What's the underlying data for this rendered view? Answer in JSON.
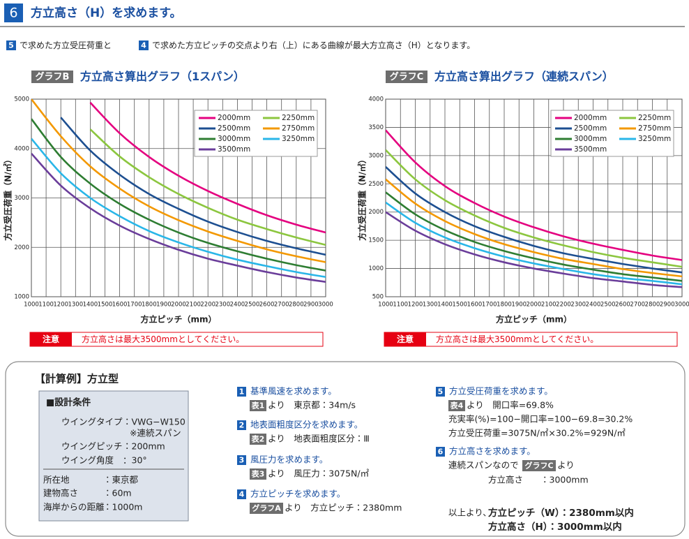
{
  "header": {
    "number": "6",
    "title": "方立高さ（H）を求めます。"
  },
  "intro": {
    "ref1": "5",
    "text1": "で求めた方立受圧荷重と",
    "ref2": "4",
    "text2": "で求めた方立ピッチの交点より右（上）にある曲線が最大方立高さ（H）となります。"
  },
  "chart_data": [
    {
      "type": "line",
      "badge": "グラフB",
      "title": "方立高さ算出グラフ（1スパン）",
      "x_label": "方立ピッチ（mm）",
      "y_label": "方立受圧荷重（N/㎡）",
      "x": [
        1000,
        1200,
        1400,
        1600,
        1800,
        2000,
        2200,
        2400,
        2600,
        2800,
        3000
      ],
      "xlim": [
        1000,
        3000
      ],
      "xticks": [
        1000,
        1100,
        1200,
        1300,
        1400,
        1500,
        1600,
        1700,
        1800,
        1900,
        2000,
        2100,
        2200,
        2300,
        2400,
        2500,
        2600,
        2700,
        2800,
        2900,
        3000
      ],
      "ylim": [
        1000,
        5000
      ],
      "yticks": [
        1000,
        2000,
        3000,
        4000,
        5000
      ],
      "grid": true,
      "legend": "upper right",
      "series": [
        {
          "name": "2000mm",
          "color": "#e4007f",
          "values": [
            null,
            null,
            4930,
            4310,
            3830,
            3450,
            3140,
            2880,
            2650,
            2460,
            2300
          ]
        },
        {
          "name": "2250mm",
          "color": "#8cc63f",
          "values": [
            null,
            null,
            4390,
            3840,
            3420,
            3080,
            2800,
            2560,
            2370,
            2200,
            2050
          ]
        },
        {
          "name": "2500mm",
          "color": "#1d4f91",
          "values": [
            null,
            4630,
            3960,
            3470,
            3080,
            2780,
            2520,
            2310,
            2130,
            1980,
            1850
          ]
        },
        {
          "name": "2750mm",
          "color": "#f39800",
          "values": [
            5000,
            4250,
            3640,
            3190,
            2830,
            2550,
            2320,
            2130,
            1960,
            1820,
            1700
          ]
        },
        {
          "name": "3000mm",
          "color": "#2e7d32",
          "values": [
            4600,
            3830,
            3290,
            2880,
            2560,
            2300,
            2090,
            1920,
            1770,
            1640,
            1530
          ]
        },
        {
          "name": "3250mm",
          "color": "#29b6e8",
          "values": [
            4200,
            3500,
            3000,
            2630,
            2330,
            2100,
            1910,
            1750,
            1620,
            1500,
            1400
          ]
        },
        {
          "name": "3500mm",
          "color": "#6a3d9a",
          "values": [
            3900,
            3250,
            2790,
            2440,
            2170,
            1950,
            1770,
            1630,
            1500,
            1390,
            1300
          ]
        }
      ],
      "note": {
        "label": "注意",
        "text": "方立高さは最大3500mmとしてください。"
      }
    },
    {
      "type": "line",
      "badge": "グラフC",
      "title": "方立高さ算出グラフ（連続スパン）",
      "x_label": "方立ピッチ（mm）",
      "y_label": "方立受圧荷重（N/㎡）",
      "x": [
        1000,
        1200,
        1400,
        1600,
        1800,
        2000,
        2200,
        2400,
        2600,
        2800,
        3000
      ],
      "xlim": [
        1000,
        3000
      ],
      "xticks": [
        1000,
        1100,
        1200,
        1300,
        1400,
        1500,
        1600,
        1700,
        1800,
        1900,
        2000,
        2100,
        2200,
        2300,
        2400,
        2500,
        2600,
        2700,
        2800,
        2900,
        3000
      ],
      "ylim": [
        500,
        4000
      ],
      "yticks": [
        500,
        1000,
        1500,
        2000,
        2500,
        3000,
        3500,
        4000
      ],
      "grid": true,
      "legend": "upper right",
      "series": [
        {
          "name": "2000mm",
          "color": "#e4007f",
          "values": [
            3450,
            2880,
            2460,
            2160,
            1920,
            1730,
            1570,
            1440,
            1330,
            1230,
            1150
          ]
        },
        {
          "name": "2250mm",
          "color": "#8cc63f",
          "values": [
            3100,
            2580,
            2210,
            1940,
            1720,
            1550,
            1410,
            1290,
            1190,
            1110,
            1030
          ]
        },
        {
          "name": "2500mm",
          "color": "#1d4f91",
          "values": [
            2800,
            2330,
            2000,
            1750,
            1560,
            1400,
            1270,
            1170,
            1080,
            1000,
            930
          ]
        },
        {
          "name": "2750mm",
          "color": "#f39800",
          "values": [
            2580,
            2150,
            1840,
            1610,
            1430,
            1290,
            1170,
            1080,
            990,
            920,
            860
          ]
        },
        {
          "name": "3000mm",
          "color": "#2e7d32",
          "values": [
            2350,
            1960,
            1680,
            1470,
            1310,
            1180,
            1070,
            980,
            900,
            840,
            780
          ]
        },
        {
          "name": "3250mm",
          "color": "#29b6e8",
          "values": [
            2170,
            1810,
            1550,
            1360,
            1210,
            1090,
            990,
            900,
            830,
            780,
            720
          ]
        },
        {
          "name": "3500mm",
          "color": "#6a3d9a",
          "values": [
            2000,
            1670,
            1430,
            1250,
            1110,
            1000,
            910,
            830,
            770,
            710,
            670
          ]
        }
      ],
      "note": {
        "label": "注意",
        "text": "方立高さは最大3500mmとしてください。"
      }
    }
  ],
  "example": {
    "title": "【計算例】方立型",
    "conditions": {
      "heading": "■設計条件",
      "rows": [
        {
          "label": "ウイングタイプ",
          "value": "：VWG−W150",
          "note": "※連続スパン"
        },
        {
          "label": "ウイングピッチ",
          "value": "：200mm"
        },
        {
          "label": "ウイング角度",
          "value": "：30°"
        },
        {
          "label": "所在地",
          "value": "：東京都"
        },
        {
          "label": "建物高さ",
          "value": "：60m"
        },
        {
          "label": "海岸からの距離",
          "value": "：1000m"
        }
      ]
    },
    "steps": [
      {
        "number": "1",
        "title": "基準風速を求めます。",
        "source": "表1",
        "text": "より　東京都：34m/s"
      },
      {
        "number": "2",
        "title": "地表面粗度区分を求めます。",
        "source": "表2",
        "text": "より　地表面粗度区分：Ⅲ"
      },
      {
        "number": "3",
        "title": "風圧力を求めます。",
        "source": "表3",
        "text": "より　風圧力：3075N/㎡"
      },
      {
        "number": "4",
        "title": "方立ピッチを求めます。",
        "source": "グラフA",
        "text": "より　方立ピッチ：2380mm"
      },
      {
        "number": "5",
        "title": "方立受圧荷重を求めます。",
        "source": "表4",
        "text": "より　開口率=69.8%",
        "lines": [
          "充実率(%)=100−開口率=100−69.8=30.2%",
          "方立受圧荷重=3075N/㎡×30.2%=929N/㎡"
        ]
      },
      {
        "number": "6",
        "title": "方立高さを求めます。",
        "lead": "連続スパンなので",
        "source": "グラフC",
        "text": "より",
        "lines": [
          "方立高さ　　：3000mm"
        ],
        "conclusion": {
          "lead": "以上より、",
          "lines": [
            "方立ピッチ（W）：2380mm以内",
            "方立高さ（H）：3000mm以内"
          ]
        }
      }
    ]
  }
}
